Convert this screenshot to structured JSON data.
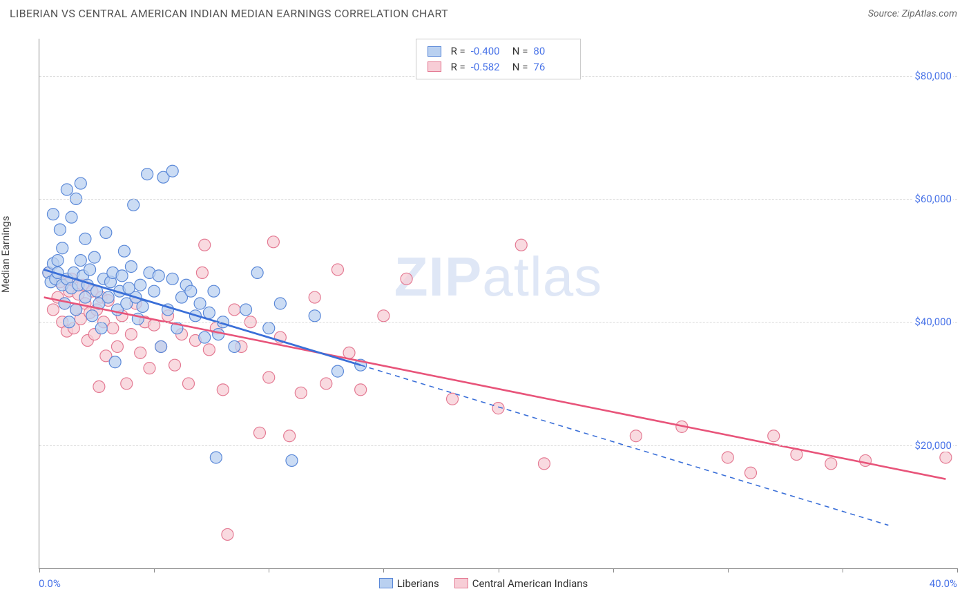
{
  "header": {
    "title": "LIBERIAN VS CENTRAL AMERICAN INDIAN MEDIAN EARNINGS CORRELATION CHART",
    "source_prefix": "Source: ",
    "source": "ZipAtlas.com"
  },
  "chart": {
    "type": "scatter",
    "y_axis_label": "Median Earnings",
    "x_min": 0.0,
    "x_max": 40.0,
    "y_min": 0,
    "y_max": 86000,
    "y_ticks": [
      20000,
      40000,
      60000,
      80000
    ],
    "y_tick_labels": [
      "$20,000",
      "$40,000",
      "$60,000",
      "$80,000"
    ],
    "x_tick_positions": [
      0,
      5,
      10,
      15,
      20,
      25,
      30,
      35,
      40
    ],
    "x_end_labels": [
      "0.0%",
      "40.0%"
    ],
    "grid_color": "#d8d8d8",
    "axis_color": "#888888",
    "label_color": "#4a74e8",
    "background_color": "#ffffff",
    "watermark_text_a": "ZIP",
    "watermark_text_b": "atlas",
    "series": [
      {
        "key": "liberians",
        "label": "Liberians",
        "marker_fill": "#b9d0f0",
        "marker_stroke": "#5a88d8",
        "line_color": "#3a6fd8",
        "R_label": "R =",
        "R": "-0.400",
        "N_label": "N =",
        "N": "80",
        "trend": {
          "x1": 0.2,
          "y1": 48500,
          "x2": 14.0,
          "y2": 33000,
          "x2_ext": 37.0,
          "y2_ext": 7000
        },
        "points": [
          [
            0.4,
            48000
          ],
          [
            0.5,
            46500
          ],
          [
            0.6,
            49500
          ],
          [
            0.6,
            57500
          ],
          [
            0.7,
            47000
          ],
          [
            0.8,
            50000
          ],
          [
            0.8,
            48000
          ],
          [
            0.9,
            55000
          ],
          [
            1.0,
            46000
          ],
          [
            1.0,
            52000
          ],
          [
            1.1,
            43000
          ],
          [
            1.2,
            47000
          ],
          [
            1.2,
            61500
          ],
          [
            1.3,
            40000
          ],
          [
            1.4,
            45500
          ],
          [
            1.4,
            57000
          ],
          [
            1.5,
            48000
          ],
          [
            1.6,
            42000
          ],
          [
            1.6,
            60000
          ],
          [
            1.7,
            46000
          ],
          [
            1.8,
            50000
          ],
          [
            1.8,
            62500
          ],
          [
            1.9,
            47500
          ],
          [
            2.0,
            44000
          ],
          [
            2.0,
            53500
          ],
          [
            2.1,
            46000
          ],
          [
            2.2,
            48500
          ],
          [
            2.3,
            41000
          ],
          [
            2.4,
            50500
          ],
          [
            2.5,
            45000
          ],
          [
            2.6,
            43000
          ],
          [
            2.7,
            39000
          ],
          [
            2.8,
            47000
          ],
          [
            2.9,
            54500
          ],
          [
            3.0,
            44000
          ],
          [
            3.1,
            46500
          ],
          [
            3.2,
            48000
          ],
          [
            3.3,
            33500
          ],
          [
            3.4,
            42000
          ],
          [
            3.5,
            45000
          ],
          [
            3.6,
            47500
          ],
          [
            3.7,
            51500
          ],
          [
            3.8,
            43000
          ],
          [
            3.9,
            45500
          ],
          [
            4.0,
            49000
          ],
          [
            4.1,
            59000
          ],
          [
            4.2,
            44000
          ],
          [
            4.3,
            40500
          ],
          [
            4.4,
            46000
          ],
          [
            4.5,
            42500
          ],
          [
            4.7,
            64000
          ],
          [
            4.8,
            48000
          ],
          [
            5.0,
            45000
          ],
          [
            5.2,
            47500
          ],
          [
            5.3,
            36000
          ],
          [
            5.4,
            63500
          ],
          [
            5.6,
            42000
          ],
          [
            5.8,
            47000
          ],
          [
            5.8,
            64500
          ],
          [
            6.0,
            39000
          ],
          [
            6.2,
            44000
          ],
          [
            6.4,
            46000
          ],
          [
            6.6,
            45000
          ],
          [
            6.8,
            41000
          ],
          [
            7.0,
            43000
          ],
          [
            7.2,
            37500
          ],
          [
            7.4,
            41500
          ],
          [
            7.6,
            45000
          ],
          [
            7.7,
            18000
          ],
          [
            7.8,
            38000
          ],
          [
            8.0,
            40000
          ],
          [
            8.5,
            36000
          ],
          [
            9.0,
            42000
          ],
          [
            9.5,
            48000
          ],
          [
            10.0,
            39000
          ],
          [
            10.5,
            43000
          ],
          [
            11.0,
            17500
          ],
          [
            12.0,
            41000
          ],
          [
            13.0,
            32000
          ],
          [
            14.0,
            33000
          ]
        ]
      },
      {
        "key": "cai",
        "label": "Central American Indians",
        "marker_fill": "#f7cdd6",
        "marker_stroke": "#e47a93",
        "line_color": "#e8547a",
        "R_label": "R =",
        "R": "-0.582",
        "N_label": "N =",
        "N": "76",
        "trend": {
          "x1": 0.2,
          "y1": 44000,
          "x2": 39.5,
          "y2": 14500
        },
        "points": [
          [
            0.4,
            48000
          ],
          [
            0.6,
            42000
          ],
          [
            0.8,
            44000
          ],
          [
            0.9,
            46500
          ],
          [
            1.0,
            40000
          ],
          [
            1.1,
            43000
          ],
          [
            1.2,
            38500
          ],
          [
            1.3,
            45000
          ],
          [
            1.4,
            47000
          ],
          [
            1.5,
            39000
          ],
          [
            1.6,
            42000
          ],
          [
            1.7,
            44500
          ],
          [
            1.8,
            40500
          ],
          [
            1.9,
            46000
          ],
          [
            2.0,
            43000
          ],
          [
            2.1,
            37000
          ],
          [
            2.2,
            41500
          ],
          [
            2.3,
            45000
          ],
          [
            2.4,
            38000
          ],
          [
            2.5,
            42000
          ],
          [
            2.6,
            29500
          ],
          [
            2.7,
            44000
          ],
          [
            2.8,
            40000
          ],
          [
            2.9,
            34500
          ],
          [
            3.0,
            43500
          ],
          [
            3.2,
            39000
          ],
          [
            3.4,
            36000
          ],
          [
            3.6,
            41000
          ],
          [
            3.8,
            30000
          ],
          [
            4.0,
            38000
          ],
          [
            4.2,
            43000
          ],
          [
            4.4,
            35000
          ],
          [
            4.6,
            40000
          ],
          [
            4.8,
            32500
          ],
          [
            5.0,
            39500
          ],
          [
            5.3,
            36000
          ],
          [
            5.6,
            41000
          ],
          [
            5.9,
            33000
          ],
          [
            6.2,
            38000
          ],
          [
            6.5,
            30000
          ],
          [
            6.8,
            37000
          ],
          [
            7.1,
            48000
          ],
          [
            7.2,
            52500
          ],
          [
            7.4,
            35500
          ],
          [
            7.7,
            39000
          ],
          [
            8.0,
            29000
          ],
          [
            8.2,
            5500
          ],
          [
            8.5,
            42000
          ],
          [
            8.8,
            36000
          ],
          [
            9.2,
            40000
          ],
          [
            9.6,
            22000
          ],
          [
            10.0,
            31000
          ],
          [
            10.2,
            53000
          ],
          [
            10.5,
            37500
          ],
          [
            10.9,
            21500
          ],
          [
            11.4,
            28500
          ],
          [
            12.0,
            44000
          ],
          [
            12.5,
            30000
          ],
          [
            13.0,
            48500
          ],
          [
            13.5,
            35000
          ],
          [
            14.0,
            29000
          ],
          [
            15.0,
            41000
          ],
          [
            16.0,
            47000
          ],
          [
            18.0,
            27500
          ],
          [
            20.0,
            26000
          ],
          [
            21.0,
            52500
          ],
          [
            22.0,
            17000
          ],
          [
            26.0,
            21500
          ],
          [
            28.0,
            23000
          ],
          [
            30.0,
            18000
          ],
          [
            31.0,
            15500
          ],
          [
            32.0,
            21500
          ],
          [
            33.0,
            18500
          ],
          [
            34.5,
            17000
          ],
          [
            36.0,
            17500
          ],
          [
            39.5,
            18000
          ]
        ]
      }
    ]
  },
  "bottom_legend": {
    "items": [
      {
        "label": "Liberians",
        "fill": "#b9d0f0",
        "stroke": "#5a88d8"
      },
      {
        "label": "Central American Indians",
        "fill": "#f7cdd6",
        "stroke": "#e47a93"
      }
    ]
  }
}
